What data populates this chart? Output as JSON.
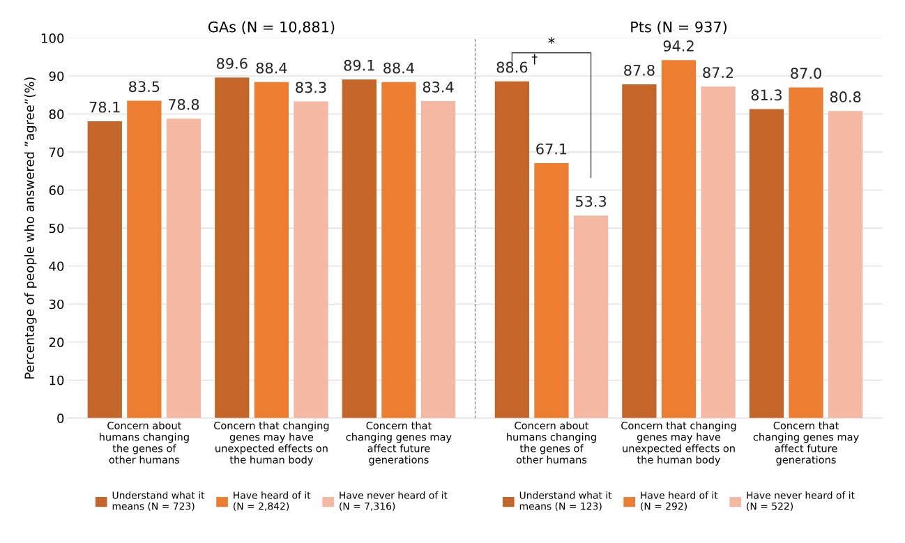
{
  "chart_data": [
    {
      "type": "bar",
      "title": "GAs (N = 10,881)",
      "ylabel": "Percentage of people who answered ”agree”(%)",
      "categories": [
        "Concern about\nhumans changing\nthe genes of\nother humans",
        "Concern that changing\ngenes may have\nunexpected effects on\nthe human body",
        "Concern that\nchanging genes may\naffect future\ngenerations"
      ],
      "series": [
        {
          "name": "Understand what it\nmeans (N = 723)",
          "color": "#c4662a",
          "values": [
            78.1,
            89.6,
            89.1
          ]
        },
        {
          "name": "Have heard of it\n(N = 2,842)",
          "color": "#ed7d31",
          "values": [
            83.5,
            88.4,
            88.4
          ]
        },
        {
          "name": "Have never heard of it\n(N = 7,316)",
          "color": "#f4b8a3",
          "values": [
            78.8,
            83.3,
            83.4
          ]
        }
      ],
      "ylim": [
        0,
        100
      ],
      "yticks": [
        0,
        10,
        20,
        30,
        40,
        50,
        60,
        70,
        80,
        90,
        100
      ],
      "grid": "y",
      "legend": "bottom",
      "data_labels": true
    },
    {
      "type": "bar",
      "title": "Pts (N = 937)",
      "categories": [
        "Concern about\nhumans changing\nthe genes of\nother humans",
        "Concern that changing\ngenes may have\nunexpected effects on\nthe human body",
        "Concern that\nchanging genes may\naffect future\ngenerations"
      ],
      "series": [
        {
          "name": "Understand what it\nmeans (N = 123)",
          "color": "#c4662a",
          "values": [
            88.6,
            87.8,
            81.3
          ]
        },
        {
          "name": "Have heard of it\n(N = 292)",
          "color": "#ed7d31",
          "values": [
            67.1,
            94.2,
            87.0
          ],
          "value_labels": [
            "67.1",
            "94.2",
            "87.0"
          ]
        },
        {
          "name": "Have never heard of it\n(N = 522)",
          "color": "#f4b8a3",
          "values": [
            53.3,
            87.2,
            80.8
          ]
        }
      ],
      "ylim": [
        0,
        100
      ],
      "yticks": [
        0,
        10,
        20,
        30,
        40,
        50,
        60,
        70,
        80,
        90,
        100
      ],
      "grid": "y",
      "legend": "bottom",
      "data_labels": true,
      "tick_labels": "x",
      "annotations": [
        "*",
        "†"
      ]
    }
  ]
}
